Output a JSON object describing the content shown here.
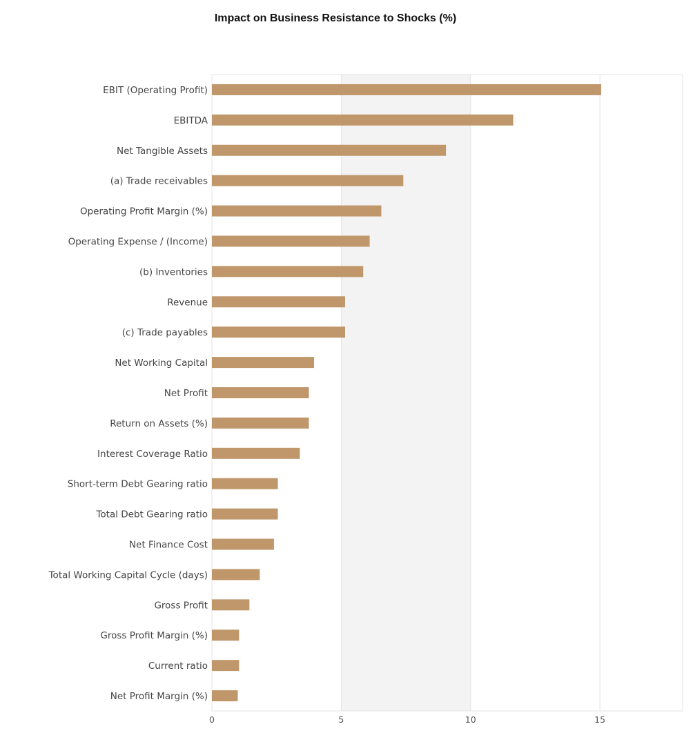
{
  "chart_data": {
    "type": "bar",
    "orientation": "horizontal",
    "title": "Impact on Business Resistance to Shocks (%)",
    "xlabel": "",
    "ylabel": "",
    "xlim": [
      0,
      18.2
    ],
    "xticks": [
      0,
      5,
      10,
      15
    ],
    "grid": "alternating vertical bands",
    "bar_color": "#c0976b",
    "band_color": "#f3f3f3",
    "categories": [
      "EBIT (Operating Profit)",
      "EBITDA",
      "Net Tangible Assets",
      "(a) Trade receivables",
      "Operating Profit Margin (%)",
      "Operating Expense / (Income)",
      "(b) Inventories",
      "Revenue",
      "(c) Trade payables",
      "Net Working Capital",
      "Net Profit",
      "Return on Assets (%)",
      "Interest Coverage Ratio",
      "Short-term Debt Gearing ratio",
      "Total Debt Gearing ratio",
      "Net Finance Cost",
      "Total Working Capital Cycle (days)",
      "Gross Profit",
      "Gross Profit Margin (%)",
      "Current ratio",
      "Net Profit Margin (%)"
    ],
    "values": [
      15.05,
      11.65,
      9.05,
      7.4,
      6.55,
      6.1,
      5.85,
      5.15,
      5.15,
      3.95,
      3.75,
      3.75,
      3.4,
      2.55,
      2.55,
      2.4,
      1.85,
      1.45,
      1.05,
      1.05,
      1.0
    ]
  }
}
